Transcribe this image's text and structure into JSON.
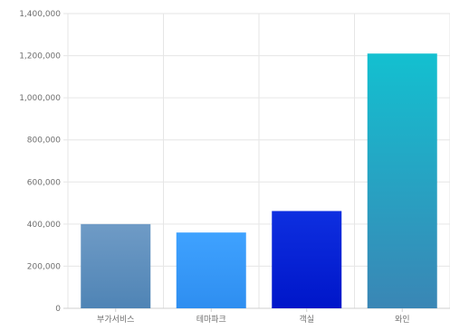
{
  "chart_data": {
    "type": "bar",
    "title": "",
    "xlabel": "",
    "ylabel": "",
    "categories": [
      "부가서비스",
      "테마파크",
      "객실",
      "와인"
    ],
    "values": [
      400000,
      360000,
      462000,
      1210000
    ],
    "ylim": [
      0,
      1400000
    ],
    "yticks": [
      "0",
      "200,000",
      "400,000",
      "600,000",
      "800,000",
      "1,000,000",
      "1,200,000",
      "1,400,000"
    ],
    "grid": true,
    "legend": "none",
    "colors": [
      {
        "top": "#6f9bc6",
        "bottom": "#4f84b5"
      },
      {
        "top": "#3fa2ff",
        "bottom": "#2e8ef0"
      },
      {
        "top": "#0e2fe0",
        "bottom": "#0016c9"
      },
      {
        "top": "#13c0d0",
        "bottom": "#3a86b5"
      }
    ]
  }
}
